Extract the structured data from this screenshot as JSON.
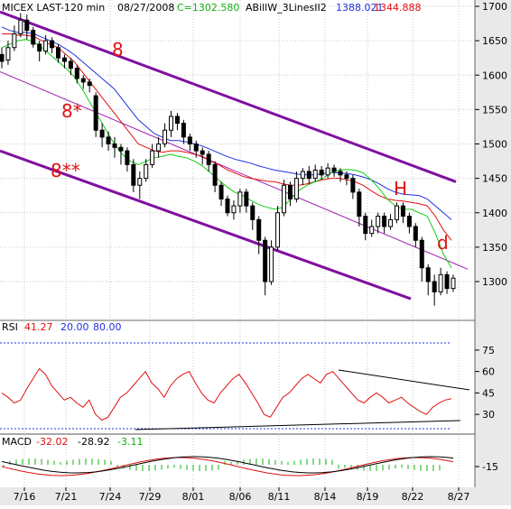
{
  "chart_data": {
    "type": "candlestick",
    "header": {
      "symbol": "MICEX LAST-120 min",
      "date": "08/27/2008",
      "close": "C=1302.580",
      "indicator": "ABillW_3LinesII2",
      "v1": "1388.021",
      "v2": "1344.888"
    },
    "price_axis": {
      "ylim": [
        1250,
        1710
      ],
      "ticks": [
        "1300",
        "1350",
        "1400",
        "1450",
        "1500",
        "1550",
        "1600",
        "1650",
        "1700"
      ]
    },
    "x_ticks": [
      "7/16",
      "7/21",
      "7/24",
      "7/29",
      "8/01",
      "8/06",
      "8/11",
      "8/14",
      "8/19",
      "8/22",
      "8/27"
    ],
    "annotations": [
      "8",
      "8*",
      "8**",
      "H",
      "d"
    ],
    "price_series": [
      {
        "name": "Blue",
        "color": "#2030e0",
        "values": [
          1670,
          1665,
          1662,
          1662,
          1660,
          1655,
          1650,
          1645,
          1638,
          1630,
          1620,
          1610,
          1600,
          1590,
          1580,
          1565,
          1550,
          1535,
          1525,
          1515,
          1510,
          1505,
          1505,
          1503,
          1500,
          1497,
          1492,
          1487,
          1482,
          1478,
          1475,
          1472,
          1468,
          1465,
          1462,
          1460,
          1458,
          1456,
          1455,
          1455,
          1457,
          1458,
          1458,
          1457,
          1455,
          1452,
          1448,
          1442,
          1435,
          1430,
          1427,
          1426,
          1425,
          1420,
          1410,
          1400,
          1390
        ]
      },
      {
        "name": "Red",
        "color": "#e01010",
        "values": [
          1660,
          1660,
          1658,
          1658,
          1656,
          1650,
          1645,
          1640,
          1630,
          1620,
          1605,
          1590,
          1575,
          1560,
          1545,
          1530,
          1515,
          1500,
          1495,
          1490,
          1488,
          1490,
          1490,
          1488,
          1485,
          1482,
          1475,
          1470,
          1463,
          1458,
          1453,
          1450,
          1448,
          1446,
          1445,
          1442,
          1440,
          1440,
          1442,
          1445,
          1448,
          1450,
          1450,
          1448,
          1445,
          1440,
          1432,
          1425,
          1420,
          1418,
          1417,
          1415,
          1413,
          1410,
          1395,
          1375,
          1360
        ]
      },
      {
        "name": "Green",
        "color": "#10cc10",
        "values": [
          1640,
          1645,
          1650,
          1652,
          1648,
          1640,
          1630,
          1620,
          1610,
          1598,
          1580,
          1560,
          1540,
          1520,
          1500,
          1485,
          1475,
          1470,
          1475,
          1480,
          1482,
          1485,
          1482,
          1480,
          1475,
          1468,
          1458,
          1448,
          1438,
          1430,
          1425,
          1418,
          1412,
          1408,
          1405,
          1408,
          1420,
          1432,
          1440,
          1445,
          1450,
          1458,
          1462,
          1463,
          1462,
          1458,
          1448,
          1435,
          1420,
          1410,
          1405,
          1405,
          1400,
          1395,
          1370,
          1340,
          1320
        ]
      }
    ],
    "candles": [
      [
        1630,
        1620,
        1640,
        1610
      ],
      [
        1622,
        1640,
        1650,
        1615
      ],
      [
        1640,
        1660,
        1672,
        1635
      ],
      [
        1660,
        1680,
        1690,
        1655
      ],
      [
        1680,
        1665,
        1688,
        1652
      ],
      [
        1665,
        1645,
        1670,
        1640
      ],
      [
        1645,
        1635,
        1650,
        1620
      ],
      [
        1635,
        1650,
        1658,
        1630
      ],
      [
        1650,
        1640,
        1655,
        1632
      ],
      [
        1640,
        1625,
        1645,
        1618
      ],
      [
        1625,
        1620,
        1630,
        1610
      ],
      [
        1620,
        1610,
        1625,
        1600
      ],
      [
        1610,
        1595,
        1615,
        1588
      ],
      [
        1595,
        1590,
        1600,
        1580
      ],
      [
        1590,
        1585,
        1595,
        1575
      ],
      [
        1570,
        1520,
        1575,
        1510
      ],
      [
        1520,
        1510,
        1530,
        1495
      ],
      [
        1510,
        1500,
        1518,
        1490
      ],
      [
        1500,
        1495,
        1510,
        1480
      ],
      [
        1495,
        1490,
        1500,
        1470
      ],
      [
        1490,
        1470,
        1495,
        1460
      ],
      [
        1470,
        1440,
        1478,
        1430
      ],
      [
        1440,
        1450,
        1460,
        1420
      ],
      [
        1450,
        1470,
        1478,
        1445
      ],
      [
        1470,
        1490,
        1500,
        1465
      ],
      [
        1490,
        1500,
        1510,
        1480
      ],
      [
        1500,
        1520,
        1530,
        1495
      ],
      [
        1520,
        1540,
        1548,
        1510
      ],
      [
        1540,
        1530,
        1545,
        1520
      ],
      [
        1530,
        1510,
        1535,
        1500
      ],
      [
        1510,
        1500,
        1515,
        1490
      ],
      [
        1500,
        1490,
        1505,
        1480
      ],
      [
        1490,
        1485,
        1495,
        1470
      ],
      [
        1485,
        1470,
        1490,
        1460
      ],
      [
        1470,
        1440,
        1475,
        1430
      ],
      [
        1440,
        1420,
        1445,
        1410
      ],
      [
        1420,
        1400,
        1425,
        1395
      ],
      [
        1400,
        1410,
        1418,
        1390
      ],
      [
        1410,
        1430,
        1435,
        1400
      ],
      [
        1430,
        1410,
        1435,
        1400
      ],
      [
        1410,
        1390,
        1415,
        1375
      ],
      [
        1390,
        1360,
        1395,
        1340
      ],
      [
        1360,
        1300,
        1365,
        1280
      ],
      [
        1300,
        1350,
        1360,
        1295
      ],
      [
        1350,
        1400,
        1410,
        1345
      ],
      [
        1400,
        1440,
        1448,
        1395
      ],
      [
        1440,
        1420,
        1445,
        1410
      ],
      [
        1420,
        1450,
        1460,
        1415
      ],
      [
        1450,
        1460,
        1465,
        1440
      ],
      [
        1460,
        1450,
        1468,
        1442
      ],
      [
        1450,
        1462,
        1470,
        1445
      ],
      [
        1462,
        1455,
        1468,
        1448
      ],
      [
        1455,
        1465,
        1472,
        1450
      ],
      [
        1465,
        1460,
        1470,
        1452
      ],
      [
        1460,
        1455,
        1465,
        1445
      ],
      [
        1455,
        1450,
        1460,
        1440
      ],
      [
        1450,
        1430,
        1455,
        1420
      ],
      [
        1430,
        1395,
        1435,
        1380
      ],
      [
        1395,
        1370,
        1400,
        1360
      ],
      [
        1370,
        1380,
        1390,
        1365
      ],
      [
        1380,
        1395,
        1400,
        1370
      ],
      [
        1395,
        1380,
        1400,
        1370
      ],
      [
        1380,
        1390,
        1398,
        1375
      ],
      [
        1390,
        1410,
        1415,
        1385
      ],
      [
        1410,
        1395,
        1415,
        1385
      ],
      [
        1395,
        1380,
        1400,
        1370
      ],
      [
        1380,
        1360,
        1385,
        1350
      ],
      [
        1360,
        1320,
        1365,
        1300
      ],
      [
        1320,
        1300,
        1325,
        1280
      ],
      [
        1300,
        1285,
        1310,
        1265
      ],
      [
        1285,
        1310,
        1320,
        1280
      ],
      [
        1310,
        1290,
        1315,
        1282
      ],
      [
        1290,
        1305,
        1310,
        1285
      ]
    ],
    "channel_lines": [
      {
        "name": "8",
        "color": "#8010a0",
        "from": [
          1692,
          "7/16"
        ],
        "to": [
          1445,
          "8/27"
        ]
      },
      {
        "name": "8*",
        "color": "#a020b0",
        "from": [
          1605,
          "7/16"
        ],
        "to": [
          1318,
          "8/27"
        ]
      },
      {
        "name": "8**",
        "color": "#8010a0",
        "from": [
          1490,
          "7/16"
        ],
        "to": [
          1275,
          "8/27"
        ]
      }
    ],
    "rsi": {
      "label": "RSI",
      "value": "41.27",
      "level1": "20.00",
      "level2": "80.00",
      "ticks": [
        "30",
        "45",
        "60",
        "75"
      ],
      "values": [
        45,
        42,
        38,
        40,
        48,
        55,
        62,
        58,
        50,
        45,
        40,
        42,
        38,
        35,
        40,
        30,
        26,
        28,
        35,
        42,
        45,
        50,
        55,
        60,
        52,
        48,
        42,
        50,
        55,
        58,
        60,
        52,
        45,
        40,
        38,
        45,
        50,
        55,
        58,
        52,
        45,
        38,
        30,
        28,
        35,
        42,
        45,
        50,
        55,
        58,
        55,
        52,
        58,
        60,
        55,
        50,
        45,
        40,
        38,
        42,
        45,
        42,
        38,
        40,
        42,
        38,
        35,
        32,
        30,
        35,
        38,
        40,
        41
      ]
    },
    "macd": {
      "label": "MACD",
      "v1": "-32.02",
      "v2": "-28.92",
      "v3": "-3.11",
      "ticks": [
        "-15"
      ]
    }
  }
}
